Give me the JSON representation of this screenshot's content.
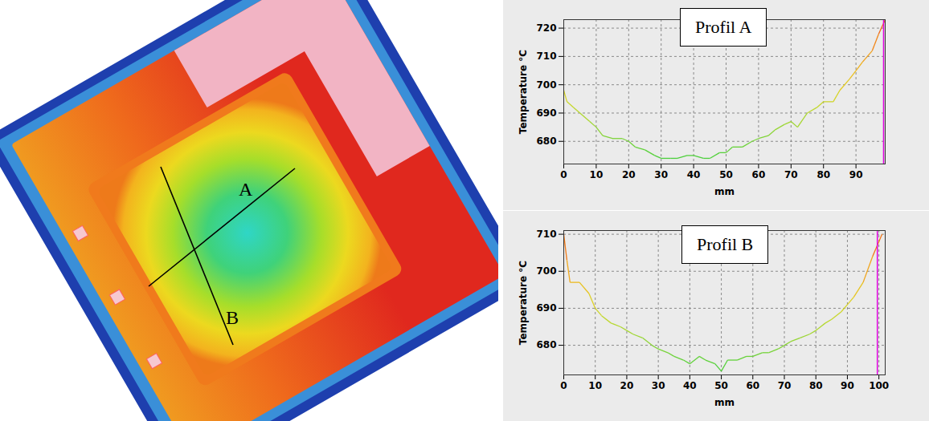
{
  "image": {
    "lines": [
      {
        "label": "A"
      },
      {
        "label": "B"
      }
    ]
  },
  "chart_data": [
    {
      "type": "line",
      "annotation": "Profil A",
      "x_label": "mm",
      "y_label": "Temperature °C",
      "x": [
        0,
        1,
        3,
        5,
        8,
        10,
        12,
        15,
        18,
        20,
        22,
        25,
        28,
        30,
        33,
        35,
        38,
        40,
        43,
        45,
        48,
        50,
        52,
        55,
        58,
        60,
        63,
        65,
        68,
        70,
        72,
        75,
        78,
        80,
        83,
        85,
        88,
        90,
        92,
        95,
        97,
        99
      ],
      "values": [
        698,
        694,
        692,
        690,
        687,
        685,
        682,
        681,
        681,
        680,
        678,
        677,
        675,
        674,
        674,
        674,
        675,
        675,
        674,
        674,
        676,
        676,
        678,
        678,
        680,
        681,
        682,
        684,
        686,
        687,
        685,
        690,
        692,
        694,
        694,
        698,
        702,
        705,
        708,
        712,
        718,
        723
      ],
      "xlim": [
        0,
        99
      ],
      "xticks": [
        0,
        10,
        20,
        30,
        40,
        50,
        60,
        70,
        80,
        90
      ],
      "ylim": [
        672,
        723
      ],
      "yticks": [
        680,
        690,
        700,
        710,
        720
      ],
      "grid": true,
      "cursor": {
        "x": 98.5,
        "color": "#e000e0"
      }
    },
    {
      "type": "line",
      "annotation": "Profil B",
      "x_label": "mm",
      "y_label": "Temperature °C",
      "x": [
        0,
        1,
        2,
        5,
        8,
        10,
        12,
        15,
        18,
        20,
        22,
        25,
        28,
        30,
        33,
        35,
        38,
        40,
        43,
        45,
        48,
        50,
        52,
        55,
        58,
        60,
        63,
        65,
        68,
        70,
        72,
        75,
        78,
        80,
        83,
        85,
        88,
        90,
        92,
        95,
        98,
        101
      ],
      "values": [
        710,
        703,
        697,
        697,
        694,
        690,
        688,
        686,
        685,
        684,
        683,
        682,
        680,
        679,
        678,
        677,
        676,
        675,
        677,
        676,
        675,
        673,
        676,
        676,
        677,
        677,
        678,
        678,
        679,
        680,
        681,
        682,
        683,
        684,
        686,
        687,
        689,
        691,
        693,
        697,
        704,
        710
      ],
      "xlim": [
        0,
        102
      ],
      "xticks": [
        0,
        10,
        20,
        30,
        40,
        50,
        60,
        70,
        80,
        90,
        100
      ],
      "ylim": [
        672,
        711
      ],
      "yticks": [
        680,
        690,
        700,
        710
      ],
      "grid": true,
      "cursor": {
        "x": 99.5,
        "color": "#e000e0"
      }
    }
  ]
}
